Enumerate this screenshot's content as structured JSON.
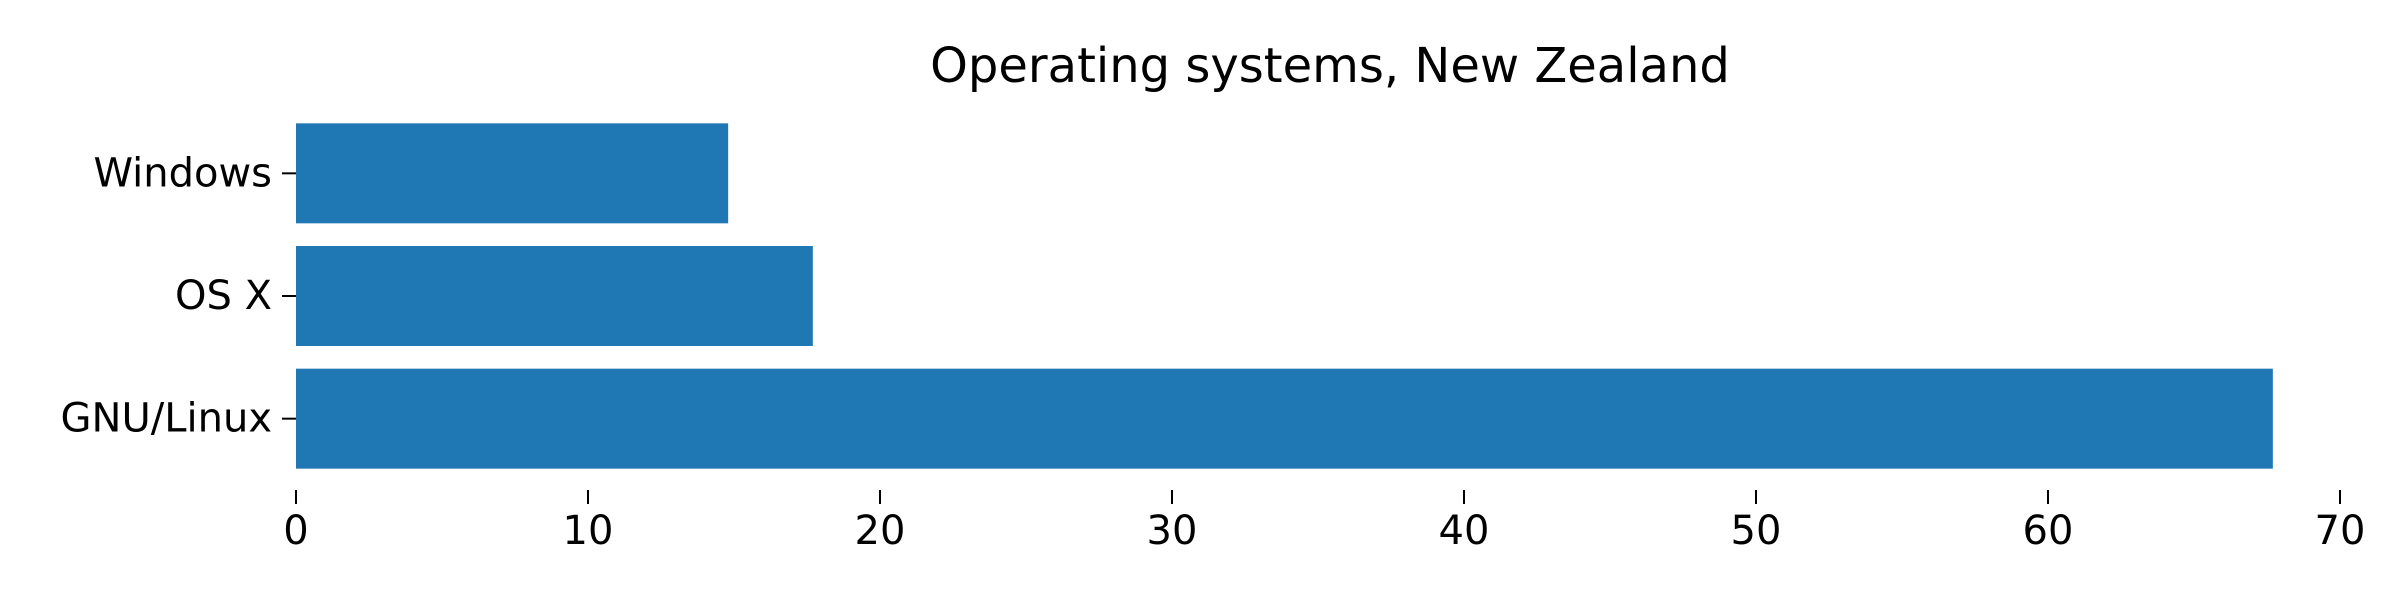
{
  "chart_data": {
    "type": "bar",
    "orientation": "horizontal",
    "title": "Operating systems, New Zealand",
    "xlabel": "",
    "ylabel": "",
    "categories": [
      "GNU/Linux",
      "OS X",
      "Windows"
    ],
    "values": [
      67.7,
      17.7,
      14.8
    ],
    "xlim": [
      0,
      70
    ],
    "xticks": [
      0,
      10,
      20,
      30,
      40,
      50,
      60,
      70
    ],
    "grid": false,
    "legend": "none",
    "bar_color": "#1f77b4"
  }
}
